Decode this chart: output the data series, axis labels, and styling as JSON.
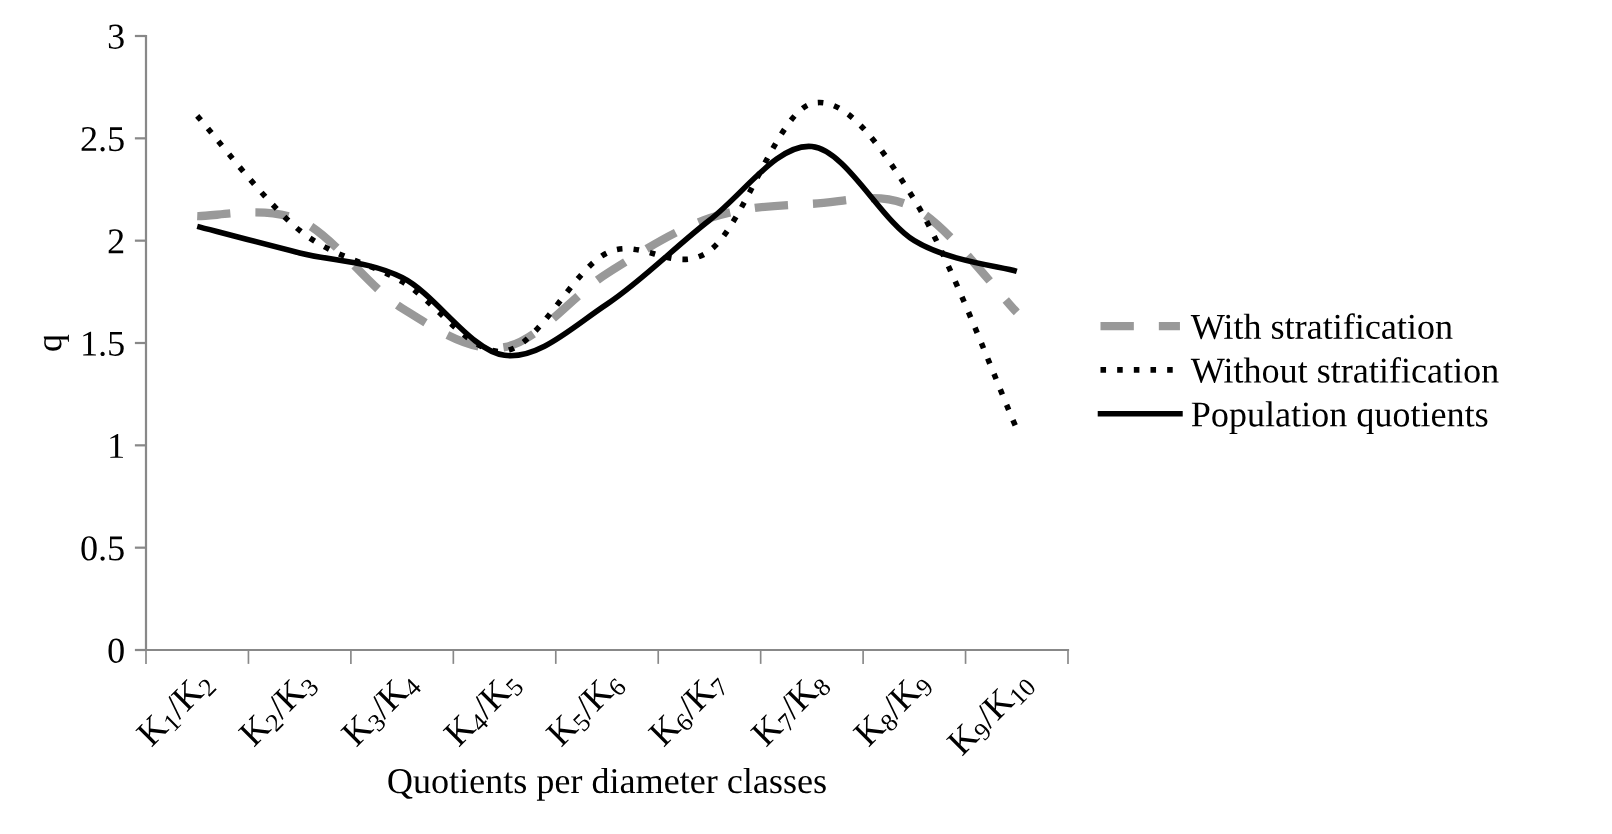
{
  "chart_data": {
    "type": "line",
    "xlabel": "Quotients per diameter classes",
    "ylabel": "q",
    "categories": [
      "K$_{1}$/K$_{2}$",
      "K$_{2}$/K$_{3}$",
      "K$_{3}$/K$_{4}$",
      "K$_{4}$/K$_{5}$",
      "K$_{5}$/K$_{6}$",
      "K$_{6}$/K$_{7}$",
      "K$_{7}$/K$_{8}$",
      "K$_{8}$/K$_{9}$",
      "K$_{9}$/K$_{10}$"
    ],
    "series": [
      {
        "name": "With stratification",
        "color": "#999999",
        "line_style": "dashed",
        "values": [
          2.12,
          2.1,
          1.67,
          1.48,
          1.84,
          2.11,
          2.18,
          2.16,
          1.65
        ]
      },
      {
        "name": "Without stratification",
        "color": "#000000",
        "line_style": "dotted",
        "values": [
          2.61,
          2.05,
          1.8,
          1.46,
          1.94,
          1.95,
          2.67,
          2.2,
          1.08
        ]
      },
      {
        "name": "Population quotients",
        "color": "#000000",
        "line_style": "solid",
        "values": [
          2.07,
          1.94,
          1.82,
          1.44,
          1.69,
          2.1,
          2.46,
          2.0,
          1.85
        ]
      }
    ],
    "ylim": [
      0,
      3
    ],
    "yticks": [
      0,
      0.5,
      1,
      1.5,
      2,
      2.5,
      3
    ],
    "grid": false,
    "legend": "right",
    "marker": "none"
  }
}
